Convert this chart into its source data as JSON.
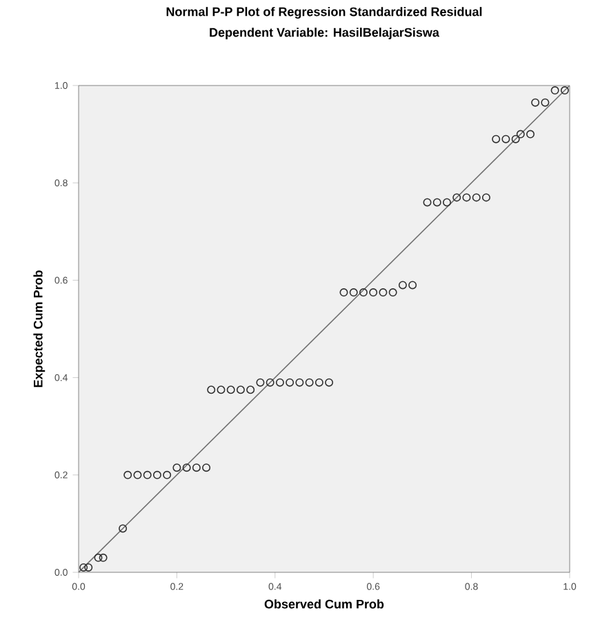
{
  "chart_data": {
    "type": "scatter",
    "title": "Normal P-P Plot of Regression Standardized Residual",
    "subtitle": "Dependent Variable: HasilBelajarSiswa",
    "xlabel": "Observed Cum Prob",
    "ylabel": "Expected Cum Prob",
    "xlim": [
      0,
      1
    ],
    "ylim": [
      0,
      1
    ],
    "xticks": [
      {
        "value": 0,
        "label": "0.0"
      },
      {
        "value": 0.2,
        "label": "0.2"
      },
      {
        "value": 0.4,
        "label": "0.4"
      },
      {
        "value": 0.6,
        "label": "0.6"
      },
      {
        "value": 0.8,
        "label": "0.8"
      },
      {
        "value": 1,
        "label": "1.0"
      }
    ],
    "yticks": [
      {
        "value": 0,
        "label": "0.0"
      },
      {
        "value": 0.2,
        "label": "0.2"
      },
      {
        "value": 0.4,
        "label": "0.4"
      },
      {
        "value": 0.6,
        "label": "0.6"
      },
      {
        "value": 0.8,
        "label": "0.8"
      },
      {
        "value": 1,
        "label": "1.0"
      }
    ],
    "marker": "circle",
    "grid": false,
    "series": [
      {
        "color": "#303030",
        "x": [
          0.01,
          0.02,
          0.04,
          0.05,
          0.09,
          0.1,
          0.12,
          0.14,
          0.16,
          0.18,
          0.2,
          0.22,
          0.24,
          0.26,
          0.27,
          0.29,
          0.31,
          0.33,
          0.35,
          0.37,
          0.39,
          0.41,
          0.43,
          0.45,
          0.47,
          0.49,
          0.51,
          0.54,
          0.56,
          0.58,
          0.6,
          0.62,
          0.64,
          0.66,
          0.68,
          0.71,
          0.73,
          0.75,
          0.77,
          0.79,
          0.81,
          0.83,
          0.85,
          0.87,
          0.89,
          0.9,
          0.92,
          0.93,
          0.95,
          0.97,
          0.99
        ],
        "values": [
          0.01,
          0.01,
          0.03,
          0.03,
          0.09,
          0.2,
          0.2,
          0.2,
          0.2,
          0.2,
          0.215,
          0.215,
          0.215,
          0.215,
          0.375,
          0.375,
          0.375,
          0.375,
          0.375,
          0.39,
          0.39,
          0.39,
          0.39,
          0.39,
          0.39,
          0.39,
          0.39,
          0.575,
          0.575,
          0.575,
          0.575,
          0.575,
          0.575,
          0.59,
          0.59,
          0.76,
          0.76,
          0.76,
          0.77,
          0.77,
          0.77,
          0.77,
          0.89,
          0.89,
          0.89,
          0.9,
          0.9,
          0.965,
          0.965,
          0.99,
          0.99
        ]
      },
      {
        "type": "line",
        "color": "#707070",
        "marker": "none",
        "line_style": "solid",
        "x": [
          0,
          1
        ],
        "values": [
          0,
          1
        ]
      }
    ]
  }
}
